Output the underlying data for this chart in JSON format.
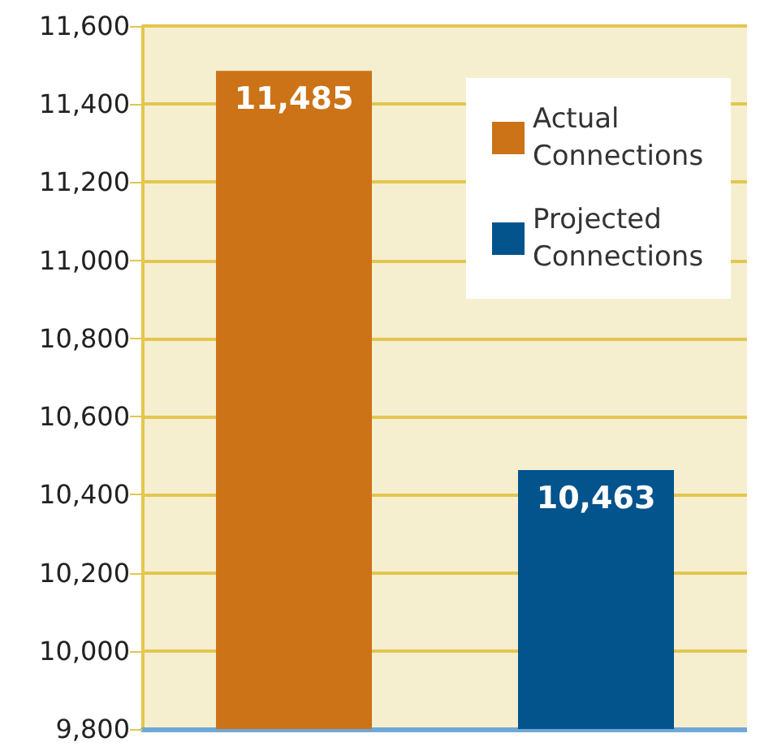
{
  "chart_data": {
    "type": "bar",
    "categories": [
      null,
      null
    ],
    "series": [
      {
        "name": "Actual Connections",
        "color": "#cc7318",
        "values": [
          11485,
          null
        ],
        "value_labels": [
          "11,485",
          null
        ]
      },
      {
        "name": "Projected Connections",
        "color": "#03538c",
        "values": [
          null,
          10463
        ],
        "value_labels": [
          null,
          "10,463"
        ]
      }
    ],
    "ylim": [
      9800,
      11600
    ],
    "yticks": [
      {
        "value": 9800,
        "label": "9,800"
      },
      {
        "value": 10000,
        "label": "10,000"
      },
      {
        "value": 10200,
        "label": "10,200"
      },
      {
        "value": 10400,
        "label": "10,400"
      },
      {
        "value": 10600,
        "label": "10,600"
      },
      {
        "value": 10800,
        "label": "10,800"
      },
      {
        "value": 11000,
        "label": "11,000"
      },
      {
        "value": 11200,
        "label": "11,200"
      },
      {
        "value": 11400,
        "label": "11,400"
      },
      {
        "value": 11600,
        "label": "11,600"
      }
    ],
    "grid": "y",
    "legend": "top right"
  }
}
